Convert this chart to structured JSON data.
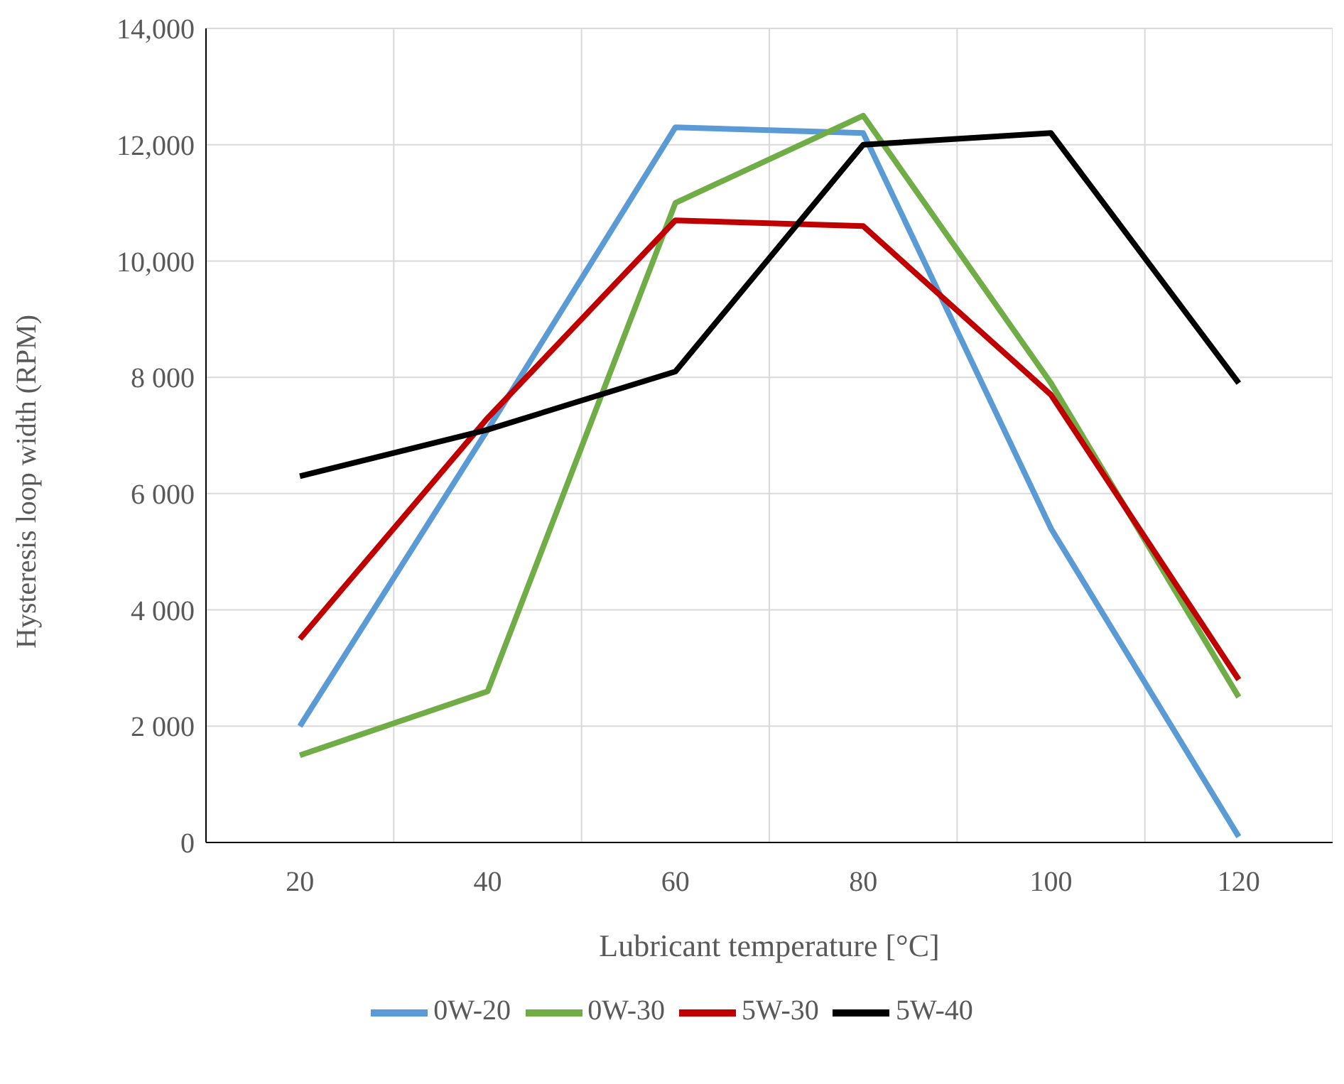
{
  "chart_data": {
    "type": "line",
    "xlabel": "Lubricant temperature [°C]",
    "ylabel": "Hysteresis loop width (RPM)",
    "categories": [
      "20",
      "40",
      "60",
      "80",
      "100",
      "120"
    ],
    "series": [
      {
        "name": "0W-20",
        "color": "#5b9bd5",
        "values": [
          2000,
          7100,
          12300,
          12200,
          5400,
          100
        ]
      },
      {
        "name": "0W-30",
        "color": "#70ad47",
        "values": [
          1500,
          2600,
          11000,
          12500,
          7900,
          2500
        ]
      },
      {
        "name": "5W-30",
        "color": "#c00000",
        "values": [
          3500,
          7300,
          10700,
          10600,
          7700,
          2800
        ]
      },
      {
        "name": "5W-40",
        "color": "#000000",
        "values": [
          6300,
          7100,
          8100,
          12000,
          12200,
          7900
        ]
      }
    ],
    "ylim": [
      0,
      14000
    ],
    "yticks": [
      0,
      {
        "value": 2000,
        "label": "2 000"
      },
      {
        "value": 4000,
        "label": "4 000"
      },
      {
        "value": 6000,
        "label": "6 000"
      },
      {
        "value": 8000,
        "label": "8 000"
      },
      {
        "value": 10000,
        "label": "10,000"
      },
      {
        "value": 12000,
        "label": "12,000"
      },
      {
        "value": 14000,
        "label": "14,000"
      }
    ],
    "grid": true,
    "legend": "bottom",
    "marker": "none",
    "line_style": "solid"
  }
}
